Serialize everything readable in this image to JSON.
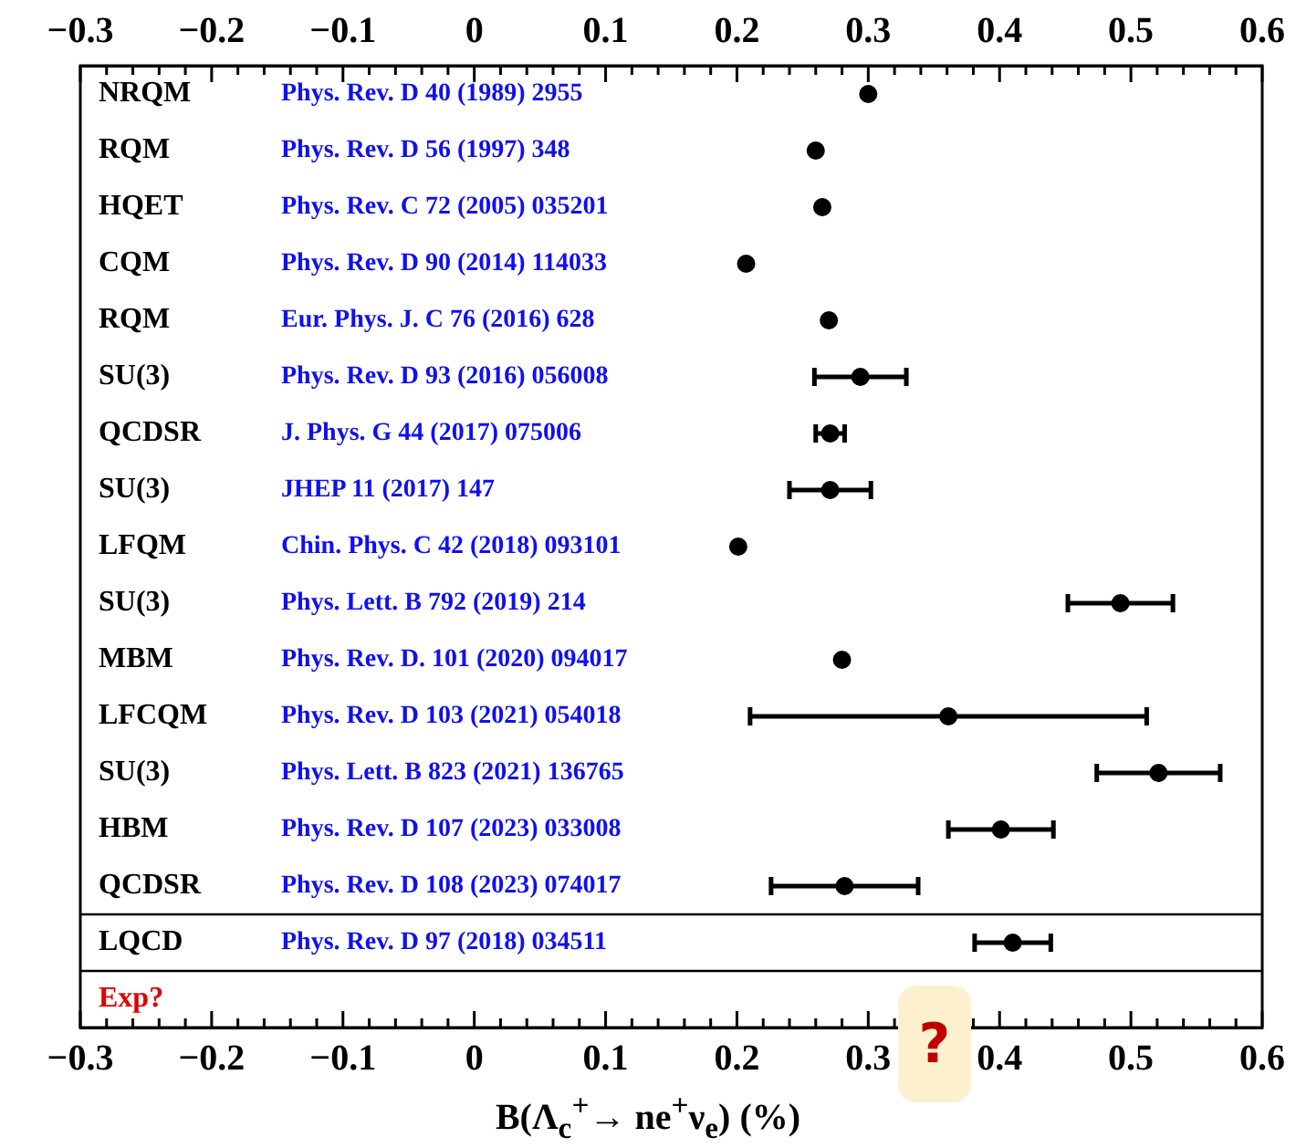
{
  "chart_data": {
    "type": "scatter",
    "orientation": "horizontal",
    "xlabel": "B(Λ$_{c}$$^{+}$→ ne$^{+}$ν$_{e}$) (%)",
    "categories": [
      "NRQM",
      "RQM",
      "HQET",
      "CQM",
      "RQM",
      "SU(3)",
      "QCDSR",
      "SU(3)",
      "LFQM",
      "SU(3)",
      "MBM",
      "LFCQM",
      "SU(3)",
      "HBM",
      "QCDSR",
      "LQCD",
      "Exp?"
    ],
    "y2_categories": [
      "Phys. Rev. D 40 (1989) 2955",
      "Phys. Rev. D 56 (1997) 348",
      "Phys. Rev. C 72 (2005) 035201",
      "Phys. Rev. D 90 (2014) 114033",
      "Eur. Phys. J. C 76 (2016) 628",
      "Phys. Rev. D 93 (2016) 056008",
      "J. Phys. G 44 (2017) 075006",
      "JHEP 11 (2017) 147",
      "Chin. Phys. C 42 (2018) 093101",
      "Phys. Lett. B 792 (2019) 214",
      "Phys. Rev. D. 101 (2020) 094017",
      "Phys. Rev. D 103 (2021) 054018",
      "Phys. Lett. B 823 (2021) 136765",
      "Phys. Rev. D 107 (2023) 033008",
      "Phys. Rev. D 108 (2023) 074017",
      "Phys. Rev. D 97 (2018) 034511",
      null
    ],
    "series": [
      {
        "color": "#000000",
        "values": [
          0.3,
          0.26,
          0.265,
          0.207,
          0.27,
          0.294,
          0.271,
          0.271,
          0.201,
          0.492,
          0.28,
          0.361,
          0.521,
          0.401,
          0.282,
          0.41,
          null
        ],
        "errors": [
          null,
          null,
          null,
          null,
          null,
          0.035,
          0.011,
          0.031,
          null,
          0.04,
          null,
          0.151,
          0.047,
          0.04,
          0.056,
          0.029,
          null
        ]
      }
    ],
    "xlim": [
      -0.3,
      0.6
    ],
    "xticks": [
      {
        "value": -0.3,
        "label": "−0.3"
      },
      {
        "value": -0.2,
        "label": "−0.2"
      },
      {
        "value": -0.1,
        "label": "−0.1"
      },
      0,
      0.1,
      0.2,
      0.3,
      0.4,
      0.5,
      0.6
    ],
    "x2lim": [
      -0.3,
      0.6
    ],
    "x2ticks": [
      {
        "value": -0.3,
        "label": "−0.3"
      },
      {
        "value": -0.2,
        "label": "−0.2"
      },
      {
        "value": -0.1,
        "label": "−0.1"
      },
      0,
      0.1,
      0.2,
      0.3,
      0.4,
      0.5,
      0.6
    ],
    "grid": false,
    "legend": false,
    "marker": "circle",
    "annotations": [
      "?"
    ]
  }
}
